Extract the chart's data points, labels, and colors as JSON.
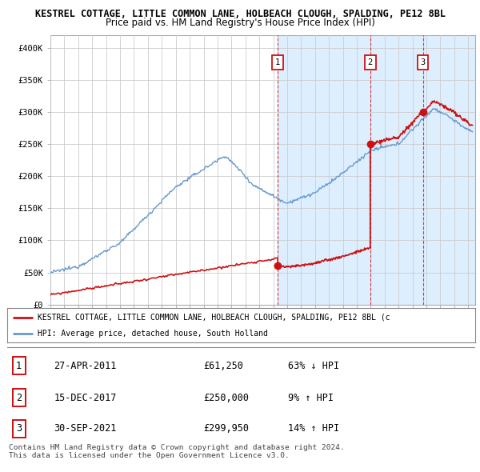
{
  "title": "KESTREL COTTAGE, LITTLE COMMON LANE, HOLBEACH CLOUGH, SPALDING, PE12 8BL",
  "subtitle": "Price paid vs. HM Land Registry's House Price Index (HPI)",
  "ylim": [
    0,
    420000
  ],
  "yticks": [
    0,
    50000,
    100000,
    150000,
    200000,
    250000,
    300000,
    350000,
    400000
  ],
  "ytick_labels": [
    "£0",
    "£50K",
    "£100K",
    "£150K",
    "£200K",
    "£250K",
    "£300K",
    "£350K",
    "£400K"
  ],
  "background_color": "#ffffff",
  "plot_bg_color": "#ffffff",
  "shade_color": "#ddeeff",
  "hpi_color": "#6699cc",
  "price_color": "#cc1111",
  "grid_color": "#cccccc",
  "transactions": [
    {
      "date_x": 2011.32,
      "price": 61250,
      "label": "1"
    },
    {
      "date_x": 2017.96,
      "price": 250000,
      "label": "2"
    },
    {
      "date_x": 2021.75,
      "price": 299950,
      "label": "3"
    }
  ],
  "transaction_details": [
    {
      "num": 1,
      "date": "27-APR-2011",
      "price": "£61,250",
      "hpi_rel": "63% ↓ HPI"
    },
    {
      "num": 2,
      "date": "15-DEC-2017",
      "price": "£250,000",
      "hpi_rel": "9% ↑ HPI"
    },
    {
      "num": 3,
      "date": "30-SEP-2021",
      "price": "£299,950",
      "hpi_rel": "14% ↑ HPI"
    }
  ],
  "legend_line1": "KESTREL COTTAGE, LITTLE COMMON LANE, HOLBEACH CLOUGH, SPALDING, PE12 8BL (c",
  "legend_line2": "HPI: Average price, detached house, South Holland",
  "copyright_text": "Contains HM Land Registry data © Crown copyright and database right 2024.\nThis data is licensed under the Open Government Licence v3.0.",
  "xmin": 1995.0,
  "xmax": 2025.5
}
